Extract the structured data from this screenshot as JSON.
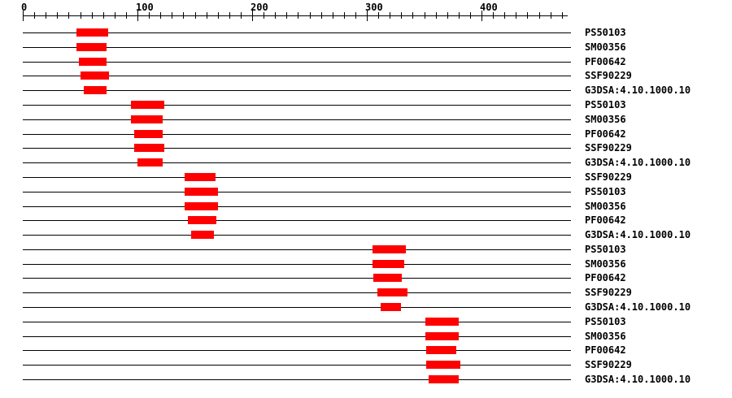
{
  "figure": {
    "background_color": "#ffffff",
    "bar_color": "#ff0000",
    "line_color": "#000000"
  },
  "chart_data": {
    "type": "bar",
    "orientation": "horizontal-intervals",
    "title": "",
    "xlabel": "",
    "ylabel": "",
    "axis": {
      "min": 0,
      "ruler_extent": 475,
      "row_line_extent": 478,
      "major_ticks": [
        0,
        100,
        200,
        300,
        400
      ],
      "major_tick_labels": [
        "0",
        "100",
        "200",
        "300",
        "400"
      ],
      "minor_tick_step": 10,
      "minor_tick_max": 470,
      "grid": false
    },
    "rows": [
      {
        "label": "PS50103",
        "start": 47,
        "end": 75
      },
      {
        "label": "SM00356",
        "start": 47,
        "end": 73
      },
      {
        "label": "PF00642",
        "start": 49,
        "end": 73
      },
      {
        "label": "SSF90229",
        "start": 50,
        "end": 75
      },
      {
        "label": "G3DSA:4.10.1000.10",
        "start": 53,
        "end": 73
      },
      {
        "label": "PS50103",
        "start": 94,
        "end": 123
      },
      {
        "label": "SM00356",
        "start": 94,
        "end": 122
      },
      {
        "label": "PF00642",
        "start": 97,
        "end": 122
      },
      {
        "label": "SSF90229",
        "start": 97,
        "end": 123
      },
      {
        "label": "G3DSA:4.10.1000.10",
        "start": 100,
        "end": 122
      },
      {
        "label": "SSF90229",
        "start": 141,
        "end": 168
      },
      {
        "label": "PS50103",
        "start": 141,
        "end": 170
      },
      {
        "label": "SM00356",
        "start": 141,
        "end": 170
      },
      {
        "label": "PF00642",
        "start": 144,
        "end": 169
      },
      {
        "label": "G3DSA:4.10.1000.10",
        "start": 147,
        "end": 167
      },
      {
        "label": "PS50103",
        "start": 305,
        "end": 334
      },
      {
        "label": "SM00356",
        "start": 305,
        "end": 333
      },
      {
        "label": "PF00642",
        "start": 306,
        "end": 331
      },
      {
        "label": "SSF90229",
        "start": 309,
        "end": 335
      },
      {
        "label": "G3DSA:4.10.1000.10",
        "start": 312,
        "end": 330
      },
      {
        "label": "PS50103",
        "start": 351,
        "end": 380
      },
      {
        "label": "SM00356",
        "start": 351,
        "end": 380
      },
      {
        "label": "PF00642",
        "start": 352,
        "end": 378
      },
      {
        "label": "SSF90229",
        "start": 352,
        "end": 382
      },
      {
        "label": "G3DSA:4.10.1000.10",
        "start": 354,
        "end": 380
      }
    ]
  }
}
